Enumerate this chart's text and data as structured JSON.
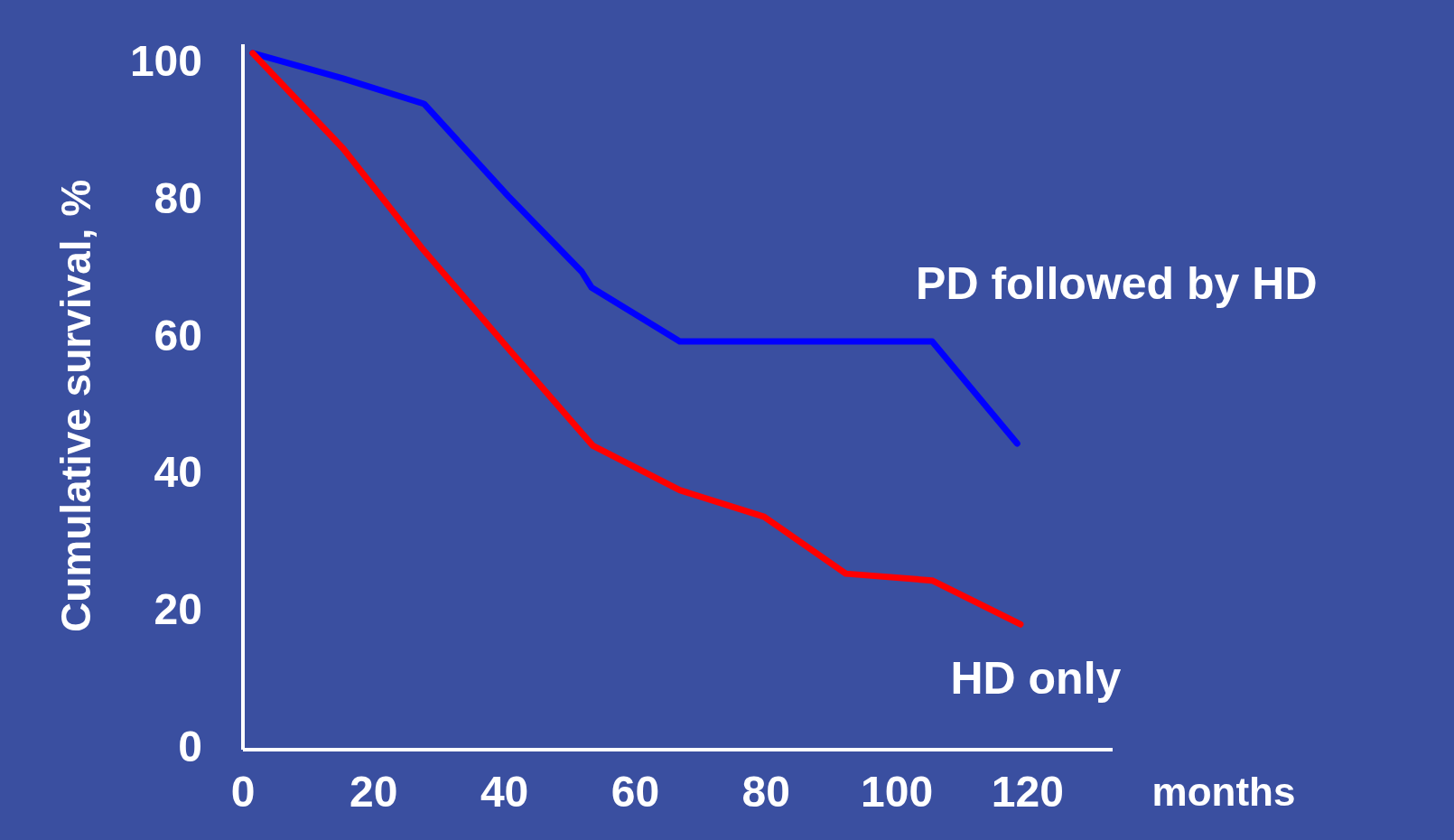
{
  "chart_data": {
    "type": "line",
    "xlabel": "months",
    "ylabel": "Cumulative  survival, %",
    "xlim": [
      0,
      133
    ],
    "ylim": [
      0,
      103
    ],
    "xticks": [
      0,
      20,
      40,
      60,
      80,
      100,
      120
    ],
    "yticks": [
      0,
      20,
      40,
      60,
      80,
      100
    ],
    "grid": false,
    "marker": "none",
    "line_style": "solid",
    "series": [
      {
        "name": "PD followed by HD",
        "color": "#0000ff",
        "x": [
          1.5,
          15.3,
          27.7,
          40.6,
          51.8,
          53.3,
          66.8,
          105.4,
          118.4
        ],
        "values": [
          101.7,
          98,
          94.3,
          80.8,
          69.8,
          67.5,
          59.6,
          59.6,
          44.7
        ]
      },
      {
        "name": "HD only",
        "color": "#ff0000",
        "x": [
          1.5,
          15.3,
          27.4,
          41.1,
          53.5,
          66.8,
          79.7,
          92.2,
          105.4,
          118.9
        ],
        "values": [
          101.7,
          87.8,
          73.2,
          58,
          44.4,
          37.9,
          34,
          25.7,
          24.7,
          18.3
        ]
      }
    ]
  }
}
